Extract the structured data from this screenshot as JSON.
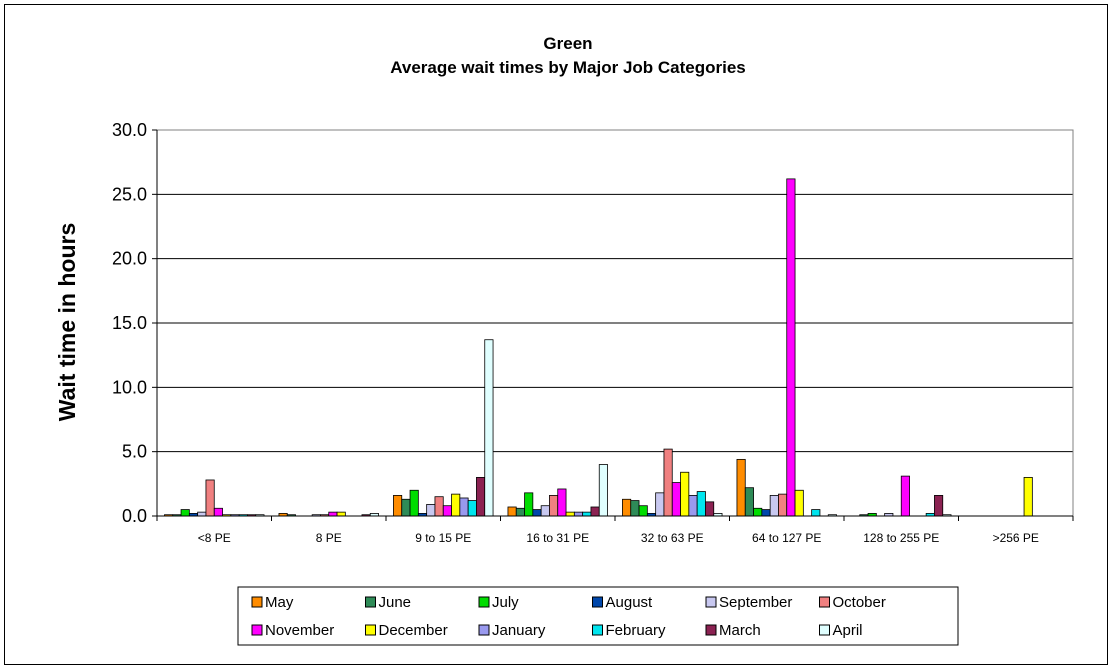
{
  "chart_data": {
    "type": "bar",
    "title": "Green",
    "subtitle": "Average wait times by Major Job Categories",
    "ylabel": "Wait time in hours",
    "xlabel": "",
    "ylim": [
      0,
      30
    ],
    "yticks": [
      "0.0",
      "5.0",
      "10.0",
      "15.0",
      "20.0",
      "25.0",
      "30.0"
    ],
    "grid": true,
    "legend_position": "bottom",
    "categories": [
      "<8 PE",
      "8 PE",
      "9 to 15 PE",
      "16 to 31 PE",
      "32 to 63 PE",
      "64 to 127 PE",
      "128 to 255 PE",
      ">256 PE"
    ],
    "series": [
      {
        "name": "May",
        "color": "#FF8C00",
        "values": [
          0.1,
          0.2,
          1.6,
          0.7,
          1.3,
          4.4,
          0.0,
          0.0
        ]
      },
      {
        "name": "June",
        "color": "#2E8B57",
        "values": [
          0.1,
          0.1,
          1.3,
          0.6,
          1.2,
          2.2,
          0.1,
          0.0
        ]
      },
      {
        "name": "July",
        "color": "#00DD00",
        "values": [
          0.5,
          0.0,
          2.0,
          1.8,
          0.8,
          0.6,
          0.2,
          0.0
        ]
      },
      {
        "name": "August",
        "color": "#0047AB",
        "values": [
          0.2,
          0.0,
          0.2,
          0.5,
          0.2,
          0.5,
          0.0,
          0.0
        ]
      },
      {
        "name": "September",
        "color": "#C8C8F0",
        "values": [
          0.3,
          0.1,
          0.9,
          0.8,
          1.8,
          1.6,
          0.2,
          0.0
        ]
      },
      {
        "name": "October",
        "color": "#F08080",
        "values": [
          2.8,
          0.1,
          1.5,
          1.6,
          5.2,
          1.7,
          0.0,
          0.0
        ]
      },
      {
        "name": "November",
        "color": "#FF00FF",
        "values": [
          0.6,
          0.3,
          0.8,
          2.1,
          2.6,
          26.2,
          3.1,
          0.0
        ]
      },
      {
        "name": "December",
        "color": "#FFFF00",
        "values": [
          0.1,
          0.3,
          1.7,
          0.3,
          3.4,
          2.0,
          0.0,
          3.0
        ]
      },
      {
        "name": "January",
        "color": "#9999EE",
        "values": [
          0.1,
          0.0,
          1.4,
          0.3,
          1.6,
          0.0,
          0.0,
          0.0
        ]
      },
      {
        "name": "February",
        "color": "#00E5EE",
        "values": [
          0.1,
          0.0,
          1.2,
          0.3,
          1.9,
          0.5,
          0.2,
          0.0
        ]
      },
      {
        "name": "March",
        "color": "#8B2252",
        "values": [
          0.1,
          0.1,
          3.0,
          0.7,
          1.1,
          0.0,
          1.6,
          0.0
        ]
      },
      {
        "name": "April",
        "color": "#E0FFFF",
        "values": [
          0.1,
          0.2,
          13.7,
          4.0,
          0.2,
          0.1,
          0.1,
          0.0
        ]
      }
    ]
  }
}
